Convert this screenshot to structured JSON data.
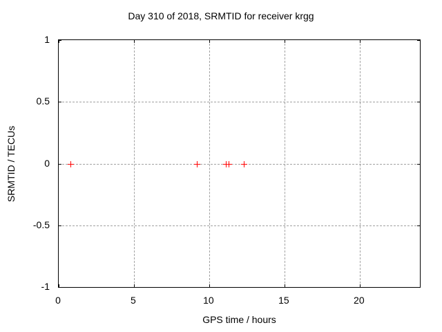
{
  "chart_data": {
    "type": "scatter",
    "title": "Day 310 of 2018, SRMTID for receiver krgg",
    "xlabel": "GPS time / hours",
    "ylabel": "SRMTID / TECUs",
    "xlim": [
      0,
      24
    ],
    "ylim": [
      -1,
      1
    ],
    "xticks": {
      "values": [
        0,
        5,
        10,
        15,
        20
      ],
      "labels": [
        "0",
        "5",
        "10",
        "15",
        "20"
      ]
    },
    "yticks": {
      "values": [
        -1,
        -0.5,
        0,
        0.5,
        1
      ],
      "labels": [
        "-1",
        "-0.5",
        "0",
        "0.5",
        "1"
      ]
    },
    "grid": true,
    "legend": "none",
    "series": [
      {
        "name": "SRMTID",
        "marker": "plus",
        "color": "#ff0000",
        "points": [
          {
            "x": 0.8,
            "y": 0
          },
          {
            "x": 9.2,
            "y": 0
          },
          {
            "x": 11.1,
            "y": 0
          },
          {
            "x": 11.3,
            "y": 0
          },
          {
            "x": 12.3,
            "y": 0
          }
        ]
      }
    ],
    "colors": {
      "background": "#ffffff",
      "axis": "#000000",
      "grid": "#a0a0a0",
      "text": "#000000"
    }
  }
}
